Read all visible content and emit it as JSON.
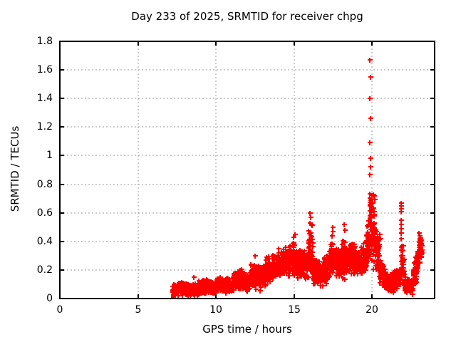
{
  "chart_data": {
    "type": "scatter",
    "title": "Day 233 of 2025, SRMTID for receiver chpg",
    "xlabel": "GPS time / hours",
    "ylabel": "SRMTID / TECUs",
    "xlim": [
      0,
      24
    ],
    "ylim": [
      0,
      1.8
    ],
    "xticks": [
      "0",
      "5",
      "10",
      "15",
      "20"
    ],
    "yticks": [
      "0",
      "0.2",
      "0.4",
      "0.6",
      "0.8",
      "1",
      "1.2",
      "1.4",
      "1.6",
      "1.8"
    ],
    "grid": true,
    "legend_position": "none",
    "marker": {
      "shape": "plus",
      "size": 7,
      "color": "#ff0000"
    },
    "colors": {
      "points": "#ff0000",
      "grid": "#9b9b9b",
      "border": "#000000",
      "background": "#ffffff"
    },
    "data_time_range_hours": [
      7.2,
      23.18
    ],
    "seed": 7,
    "segments_t0_t1_mean0_mean1_spread_density": [
      [
        7.2,
        7.4,
        0.05,
        0.06,
        0.045,
        170
      ],
      [
        7.4,
        8.3,
        0.065,
        0.07,
        0.05,
        170
      ],
      [
        8.3,
        8.9,
        0.06,
        0.06,
        0.045,
        170
      ],
      [
        8.9,
        9.5,
        0.085,
        0.09,
        0.055,
        170
      ],
      [
        9.5,
        10.0,
        0.08,
        0.08,
        0.05,
        170
      ],
      [
        10.0,
        10.6,
        0.1,
        0.1,
        0.06,
        170
      ],
      [
        10.6,
        11.1,
        0.09,
        0.1,
        0.055,
        170
      ],
      [
        11.1,
        11.7,
        0.13,
        0.14,
        0.075,
        170
      ],
      [
        11.7,
        12.2,
        0.12,
        0.12,
        0.07,
        170
      ],
      [
        12.2,
        12.8,
        0.16,
        0.16,
        0.1,
        170
      ],
      [
        12.8,
        13.2,
        0.14,
        0.17,
        0.09,
        170
      ],
      [
        13.2,
        13.9,
        0.2,
        0.23,
        0.1,
        170
      ],
      [
        13.9,
        14.6,
        0.25,
        0.26,
        0.11,
        170
      ],
      [
        14.6,
        15.2,
        0.27,
        0.28,
        0.13,
        170
      ],
      [
        15.2,
        15.9,
        0.24,
        0.24,
        0.12,
        170
      ],
      [
        15.9,
        16.2,
        0.33,
        0.36,
        0.2,
        180
      ],
      [
        16.2,
        16.9,
        0.19,
        0.17,
        0.1,
        170
      ],
      [
        16.9,
        17.3,
        0.2,
        0.23,
        0.11,
        170
      ],
      [
        17.3,
        17.6,
        0.28,
        0.27,
        0.15,
        170
      ],
      [
        17.6,
        18.0,
        0.24,
        0.25,
        0.12,
        170
      ],
      [
        18.0,
        18.4,
        0.27,
        0.28,
        0.15,
        170
      ],
      [
        18.4,
        19.2,
        0.28,
        0.27,
        0.12,
        170
      ],
      [
        19.2,
        19.6,
        0.25,
        0.28,
        0.12,
        170
      ],
      [
        19.6,
        19.8,
        0.32,
        0.45,
        0.15,
        180
      ],
      [
        19.8,
        20.15,
        0.55,
        0.48,
        0.3,
        220
      ],
      [
        20.15,
        20.45,
        0.38,
        0.28,
        0.15,
        180
      ],
      [
        20.45,
        20.8,
        0.2,
        0.15,
        0.1,
        170
      ],
      [
        20.8,
        21.4,
        0.12,
        0.1,
        0.075,
        170
      ],
      [
        21.4,
        21.85,
        0.13,
        0.16,
        0.08,
        170
      ],
      [
        21.85,
        22.05,
        0.26,
        0.24,
        0.17,
        130
      ],
      [
        22.05,
        22.6,
        0.1,
        0.09,
        0.065,
        170
      ],
      [
        22.6,
        22.9,
        0.14,
        0.22,
        0.1,
        170
      ],
      [
        22.9,
        23.18,
        0.32,
        0.35,
        0.12,
        200
      ]
    ],
    "outlier_points": [
      [
        19.86,
        1.67
      ],
      [
        19.88,
        1.55
      ],
      [
        19.86,
        1.4
      ],
      [
        19.88,
        1.26
      ],
      [
        19.87,
        1.09
      ],
      [
        19.88,
        0.98
      ],
      [
        19.9,
        0.92
      ],
      [
        19.86,
        0.87
      ],
      [
        16.02,
        0.6
      ],
      [
        16.06,
        0.57
      ],
      [
        16.0,
        0.53
      ],
      [
        21.86,
        0.67
      ],
      [
        21.87,
        0.65
      ],
      [
        21.86,
        0.63
      ],
      [
        21.87,
        0.61
      ],
      [
        21.86,
        0.55
      ],
      [
        21.87,
        0.52
      ],
      [
        21.86,
        0.49
      ],
      [
        21.87,
        0.46
      ],
      [
        21.86,
        0.42
      ],
      [
        21.87,
        0.36
      ],
      [
        21.86,
        0.34
      ],
      [
        21.87,
        0.3
      ],
      [
        21.86,
        0.26
      ],
      [
        17.46,
        0.5
      ],
      [
        17.49,
        0.47
      ],
      [
        17.44,
        0.44
      ],
      [
        18.2,
        0.52
      ],
      [
        18.23,
        0.48
      ],
      [
        15.05,
        0.45
      ],
      [
        14.95,
        0.43
      ],
      [
        20.5,
        0.45
      ],
      [
        20.53,
        0.42
      ],
      [
        12.5,
        0.3
      ],
      [
        8.6,
        0.15
      ],
      [
        22.98,
        0.46
      ],
      [
        23.02,
        0.44
      ]
    ],
    "square_point": [
      7.25,
      0.015
    ]
  }
}
